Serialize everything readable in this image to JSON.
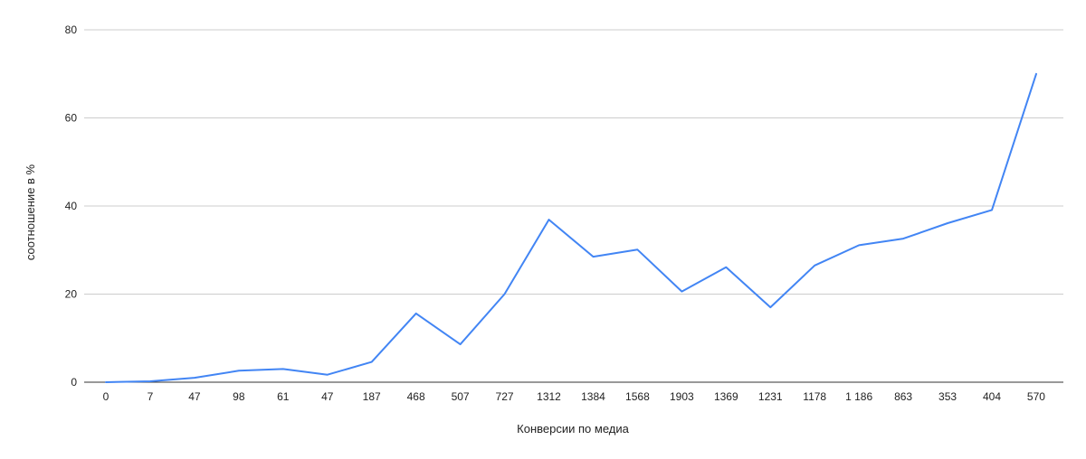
{
  "chart_data": {
    "type": "line",
    "title": "",
    "xlabel": "Конверсии по медиа",
    "ylabel": "соотношение в %",
    "categories": [
      "0",
      "7",
      "47",
      "98",
      "61",
      "47",
      "187",
      "468",
      "507",
      "727",
      "1312",
      "1384",
      "1568",
      "1903",
      "1369",
      "1231",
      "1178",
      "1 186",
      "863",
      "353",
      "404",
      "570"
    ],
    "series": [
      {
        "values": [
          0,
          0.2,
          1.0,
          2.6,
          3.0,
          1.7,
          4.6,
          15.6,
          8.6,
          20.0,
          36.9,
          28.5,
          30.1,
          20.6,
          26.1,
          17.0,
          26.5,
          31.1,
          32.6,
          36.1,
          39.1,
          70.0
        ]
      }
    ],
    "ylim": [
      0,
      80
    ],
    "yticks": [
      "0",
      "20",
      "40",
      "60",
      "80"
    ],
    "grid": true,
    "legend": "none",
    "colors": {
      "line": "#4285f4",
      "grid": "#cccccc",
      "baseline": "#333333"
    }
  }
}
